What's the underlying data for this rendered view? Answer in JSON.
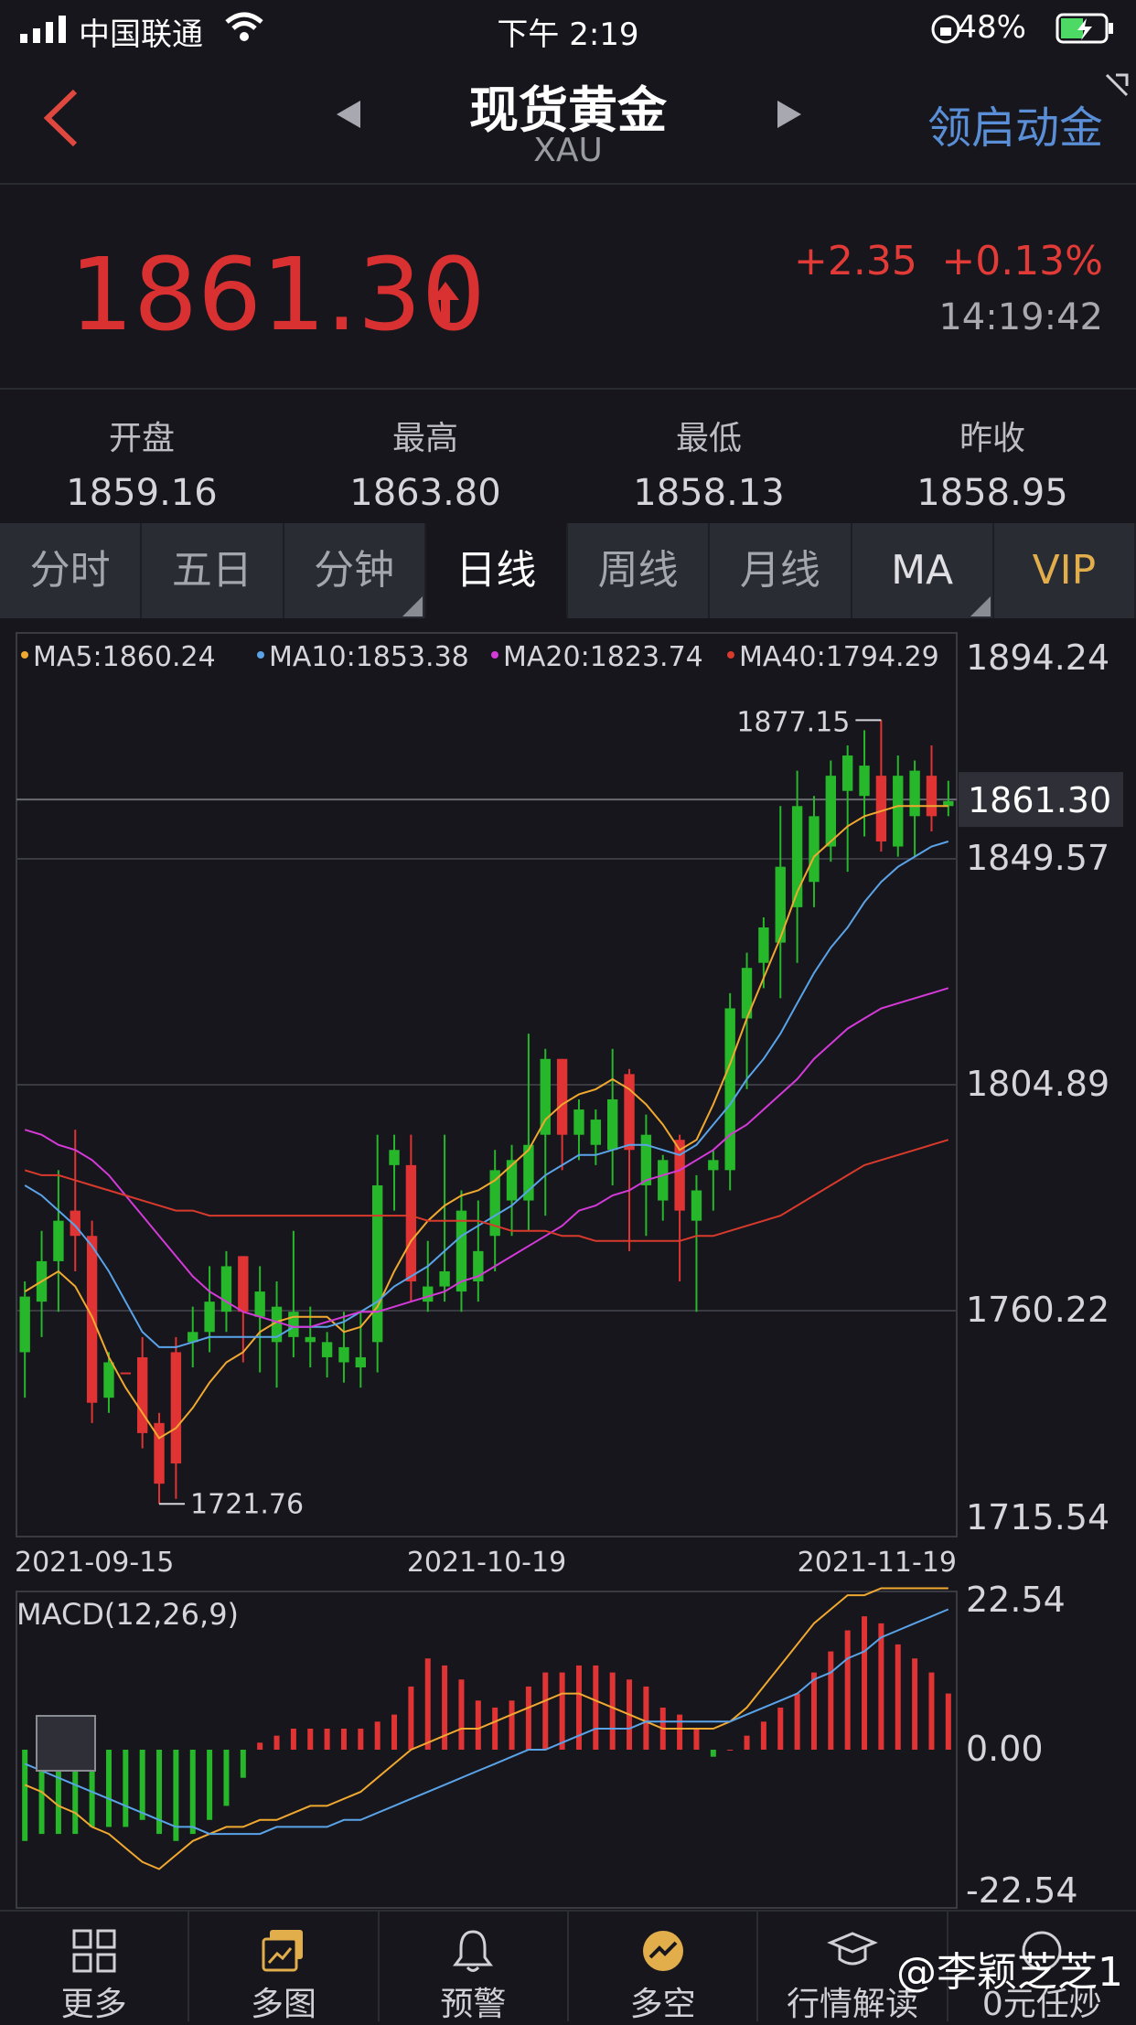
{
  "status": {
    "carrier": "中国联通",
    "time": "下午 2:19",
    "battery": "48%"
  },
  "header": {
    "title": "现货黄金",
    "subtitle": "XAU",
    "right_label": "领启动金"
  },
  "quote": {
    "price": "1861.30",
    "change": "+2.35",
    "change_pct": "+0.13%",
    "time": "14:19:42"
  },
  "stats": [
    {
      "label": "开盘",
      "value": "1859.16"
    },
    {
      "label": "最高",
      "value": "1863.80"
    },
    {
      "label": "最低",
      "value": "1858.13"
    },
    {
      "label": "昨收",
      "value": "1858.95"
    }
  ],
  "tabs": [
    "分时",
    "五日",
    "分钟",
    "日线",
    "周线",
    "月线",
    "MA",
    "VIP"
  ],
  "active_tab": "日线",
  "chart_data": {
    "type": "candlestick",
    "legend": [
      "MA5:1860.24",
      "MA10:1853.38",
      "MA20:1823.74",
      "MA40:1794.29"
    ],
    "ma_colors": [
      "#f0a830",
      "#5aa3e8",
      "#d43ad8",
      "#d93a2c"
    ],
    "y_ticks": [
      "1894.24",
      "1849.57",
      "1804.89",
      "1760.22",
      "1715.54"
    ],
    "ylim": [
      1715.54,
      1894.24
    ],
    "current": "1861.30",
    "high_label": "1877.15",
    "low_label": "1721.76",
    "x_ticks": [
      "2021-09-15",
      "2021-10-19",
      "2021-11-19"
    ],
    "candles": [
      [
        1763,
        1752,
        1766,
        1743
      ],
      [
        1770,
        1762,
        1776,
        1755
      ],
      [
        1778,
        1770,
        1788,
        1760
      ],
      [
        1775,
        1780,
        1796,
        1768
      ],
      [
        1742,
        1775,
        1778,
        1738
      ],
      [
        1750,
        1743,
        1752,
        1740
      ],
      [
        1748,
        1748,
        1748,
        1748
      ],
      [
        1736,
        1751,
        1755,
        1733
      ],
      [
        1726,
        1738,
        1740,
        1722
      ],
      [
        1730,
        1752,
        1755,
        1723
      ],
      [
        1756,
        1754,
        1761,
        1749
      ],
      [
        1762,
        1756,
        1769,
        1752
      ],
      [
        1769,
        1760,
        1772,
        1756
      ],
      [
        1760,
        1771,
        1771,
        1750
      ],
      [
        1764,
        1759,
        1769,
        1748
      ],
      [
        1761,
        1754,
        1766,
        1745
      ],
      [
        1760,
        1755,
        1776,
        1751
      ],
      [
        1755,
        1754,
        1761,
        1749
      ],
      [
        1754,
        1751,
        1756,
        1747
      ],
      [
        1753,
        1750,
        1760,
        1746
      ],
      [
        1751,
        1749,
        1760,
        1745
      ],
      [
        1785,
        1754,
        1795,
        1748
      ],
      [
        1792,
        1789,
        1795,
        1780
      ],
      [
        1766,
        1789,
        1795,
        1762
      ],
      [
        1765,
        1762,
        1774,
        1760
      ],
      [
        1768,
        1765,
        1795,
        1762
      ],
      [
        1780,
        1764,
        1784,
        1760
      ],
      [
        1772,
        1766,
        1782,
        1762
      ],
      [
        1788,
        1775,
        1792,
        1768
      ],
      [
        1790,
        1782,
        1793,
        1775
      ],
      [
        1793,
        1782,
        1815,
        1776
      ],
      [
        1810,
        1795,
        1812,
        1779
      ],
      [
        1795,
        1810,
        1810,
        1788
      ],
      [
        1800,
        1795,
        1802,
        1790
      ],
      [
        1798,
        1793,
        1800,
        1789
      ],
      [
        1802,
        1792,
        1812,
        1785
      ],
      [
        1792,
        1807,
        1808,
        1772
      ],
      [
        1795,
        1785,
        1799,
        1775
      ],
      [
        1790,
        1782,
        1791,
        1778
      ],
      [
        1780,
        1794,
        1795,
        1766
      ],
      [
        1784,
        1778,
        1787,
        1760
      ],
      [
        1790,
        1788,
        1792,
        1780
      ],
      [
        1820,
        1788,
        1823,
        1784
      ],
      [
        1828,
        1818,
        1831,
        1804
      ],
      [
        1836,
        1829,
        1838,
        1824
      ],
      [
        1848,
        1833,
        1860,
        1822
      ],
      [
        1860,
        1840,
        1867,
        1829
      ],
      [
        1858,
        1845,
        1862,
        1840
      ],
      [
        1866,
        1852,
        1869,
        1849
      ],
      [
        1870,
        1863,
        1872,
        1847
      ],
      [
        1868,
        1862,
        1875,
        1854
      ],
      [
        1853,
        1866,
        1877,
        1851
      ],
      [
        1866,
        1852,
        1870,
        1850
      ],
      [
        1867,
        1858,
        1869,
        1850
      ],
      [
        1858,
        1866,
        1872,
        1855
      ],
      [
        1861,
        1860,
        1865,
        1858
      ]
    ],
    "ma": {
      "MA5": [
        1764,
        1766,
        1768,
        1765,
        1759,
        1751,
        1745,
        1740,
        1735,
        1737,
        1741,
        1746,
        1750,
        1752,
        1756,
        1758,
        1759,
        1759,
        1759,
        1756,
        1757,
        1761,
        1768,
        1774,
        1778,
        1781,
        1783,
        1784,
        1786,
        1789,
        1792,
        1798,
        1801,
        1803,
        1804,
        1806,
        1804,
        1801,
        1797,
        1792,
        1794,
        1801,
        1809,
        1818,
        1826,
        1834,
        1843,
        1850,
        1853,
        1856,
        1858,
        1859,
        1860,
        1860,
        1860,
        1860
      ],
      "MA10": [
        1785,
        1783,
        1780,
        1777,
        1773,
        1768,
        1762,
        1756,
        1753,
        1753,
        1754,
        1755,
        1755,
        1755,
        1755,
        1755,
        1757,
        1757,
        1757,
        1758,
        1760,
        1762,
        1765,
        1767,
        1769,
        1772,
        1775,
        1777,
        1779,
        1781,
        1784,
        1787,
        1789,
        1791,
        1791,
        1792,
        1793,
        1793,
        1792,
        1791,
        1793,
        1797,
        1801,
        1806,
        1810,
        1815,
        1821,
        1827,
        1832,
        1836,
        1841,
        1845,
        1848,
        1850,
        1852,
        1853
      ],
      "MA20": [
        1796,
        1795,
        1793,
        1792,
        1790,
        1787,
        1783,
        1779,
        1775,
        1771,
        1767,
        1764,
        1762,
        1760,
        1759,
        1758,
        1757,
        1757,
        1758,
        1759,
        1760,
        1760,
        1761,
        1762,
        1763,
        1764,
        1766,
        1767,
        1769,
        1771,
        1773,
        1775,
        1777,
        1780,
        1781,
        1783,
        1784,
        1786,
        1787,
        1788,
        1790,
        1792,
        1795,
        1797,
        1800,
        1803,
        1806,
        1810,
        1813,
        1816,
        1818,
        1820,
        1821,
        1822,
        1823,
        1824
      ],
      "MA40": [
        1788,
        1787,
        1787,
        1786,
        1785,
        1784,
        1783,
        1782,
        1781,
        1780,
        1780,
        1779,
        1779,
        1779,
        1779,
        1779,
        1779,
        1779,
        1779,
        1779,
        1779,
        1779,
        1779,
        1779,
        1778,
        1778,
        1778,
        1778,
        1777,
        1776,
        1776,
        1776,
        1775,
        1775,
        1774,
        1774,
        1774,
        1774,
        1774,
        1774,
        1775,
        1775,
        1776,
        1777,
        1778,
        1779,
        1781,
        1783,
        1785,
        1787,
        1789,
        1790,
        1791,
        1792,
        1793,
        1794
      ]
    },
    "macd": {
      "label": "MACD(12,26,9)",
      "y_ticks": [
        "22.54",
        "0.00",
        "-22.54"
      ],
      "ylim": [
        -22.54,
        22.54
      ],
      "hist": [
        -13,
        -12,
        -12,
        -12,
        -11,
        -11,
        -11,
        -10,
        -12,
        -13,
        -12,
        -10,
        -8,
        -4,
        1,
        2,
        3,
        3,
        3,
        3,
        3,
        4,
        5,
        9,
        13,
        12,
        10,
        7,
        6,
        7,
        9,
        11,
        11,
        12,
        12,
        11,
        10,
        9,
        6,
        5,
        3,
        -1,
        0,
        2,
        4,
        6,
        8,
        11,
        14,
        17,
        19,
        18,
        15,
        13,
        11,
        8
      ],
      "dif": [
        -5,
        -6,
        -8,
        -9,
        -11,
        -12,
        -14,
        -16,
        -17,
        -15,
        -13,
        -12,
        -11,
        -11,
        -10,
        -10,
        -9,
        -8,
        -8,
        -7,
        -6,
        -4,
        -2,
        0,
        1,
        2,
        3,
        3,
        4,
        5,
        6,
        7,
        8,
        8,
        7,
        6,
        5,
        4,
        3,
        3,
        3,
        3,
        4,
        6,
        9,
        12,
        15,
        18,
        20,
        22,
        22,
        23,
        23,
        23,
        23,
        23
      ],
      "dea": [
        -2,
        -3,
        -4,
        -5,
        -6,
        -7,
        -8,
        -9,
        -10,
        -11,
        -11,
        -12,
        -12,
        -12,
        -12,
        -11,
        -11,
        -11,
        -11,
        -10,
        -10,
        -9,
        -8,
        -7,
        -6,
        -5,
        -4,
        -3,
        -2,
        -1,
        0,
        0,
        1,
        2,
        3,
        3,
        3,
        4,
        4,
        4,
        4,
        4,
        4,
        5,
        6,
        7,
        8,
        10,
        11,
        13,
        14,
        16,
        17,
        18,
        19,
        20
      ]
    }
  },
  "nav": [
    {
      "label": "更多",
      "icon": "grid-icon"
    },
    {
      "label": "多图",
      "icon": "multi-chart-icon"
    },
    {
      "label": "预警",
      "icon": "bell-icon"
    },
    {
      "label": "多空",
      "icon": "bull-bear-icon"
    },
    {
      "label": "行情解读",
      "icon": "graduation-cap-icon"
    },
    {
      "label": "0元任炒",
      "icon": "gift-icon"
    }
  ],
  "watermark": "@李颖芝芝1"
}
